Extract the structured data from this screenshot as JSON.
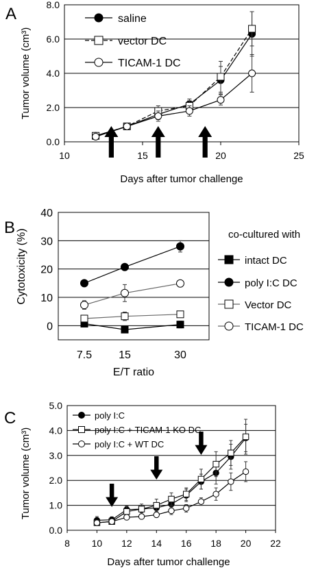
{
  "panels": [
    "A",
    "B",
    "C"
  ],
  "chart_data": [
    {
      "panel": "A",
      "type": "line",
      "title": "",
      "xlabel": "Days after tumor challenge",
      "ylabel": "Tumor volume (cm³)",
      "xlim": [
        10,
        25
      ],
      "ylim": [
        0,
        8
      ],
      "xticks": [
        10,
        15,
        20,
        25
      ],
      "yticks": [
        0,
        2,
        4,
        6,
        8
      ],
      "xtick_labels": [
        "10",
        "15",
        "20",
        "25"
      ],
      "ytick_labels": [
        "0.0",
        "2.0",
        "4.0",
        "6.0",
        "8.0"
      ],
      "grid": "horizontal",
      "legend_position": "top-left",
      "x": [
        12,
        14,
        16,
        18,
        20,
        22
      ],
      "series": [
        {
          "name": "saline",
          "marker": "filled-circle",
          "dash": "solid",
          "values": [
            0.35,
            0.9,
            1.6,
            2.2,
            3.6,
            6.3
          ],
          "errors": [
            0.1,
            0.1,
            0.3,
            0.3,
            0.8,
            1.3
          ]
        },
        {
          "name": "vector DC",
          "marker": "open-square",
          "dash": "dashed",
          "values": [
            0.35,
            0.9,
            1.8,
            2.1,
            3.8,
            6.6
          ],
          "errors": [
            0.1,
            0.1,
            0.3,
            0.3,
            0.9,
            1.0
          ]
        },
        {
          "name": "TICAM-1 DC",
          "marker": "open-circle",
          "dash": "solid",
          "values": [
            0.3,
            0.9,
            1.5,
            1.8,
            2.45,
            4.0
          ],
          "errors": [
            0.1,
            0.1,
            0.3,
            0.3,
            0.3,
            1.1
          ]
        }
      ],
      "arrows_at_x": [
        13,
        16,
        19
      ]
    },
    {
      "panel": "B",
      "type": "line",
      "title": "",
      "xlabel": "E/T ratio",
      "ylabel": "Cytotoxicity (%)",
      "ylim": [
        -5,
        40
      ],
      "yticks": [
        0,
        10,
        20,
        30,
        40
      ],
      "ytick_labels": [
        "0",
        "10",
        "20",
        "30",
        "40"
      ],
      "categories": [
        "7.5",
        "15",
        "30"
      ],
      "grid": "horizontal",
      "legend_title": "co-cultured with",
      "legend_position": "right",
      "series": [
        {
          "name": "intact DC",
          "marker": "filled-square",
          "values": [
            0.7,
            -1.4,
            0.4
          ],
          "errors": [
            0.5,
            0.6,
            1.2
          ]
        },
        {
          "name": "poly I:C DC",
          "marker": "filled-circle",
          "values": [
            15.0,
            20.7,
            28.0
          ],
          "errors": [
            0.4,
            0.4,
            2.0
          ]
        },
        {
          "name": "Vector DC",
          "marker": "open-square",
          "values": [
            2.5,
            3.3,
            4.0
          ],
          "errors": [
            0.5,
            1.5,
            1.0
          ]
        },
        {
          "name": "TICAM-1 DC",
          "marker": "open-circle",
          "values": [
            7.3,
            11.5,
            14.9
          ],
          "errors": [
            1.5,
            3.0,
            0.5
          ]
        }
      ]
    },
    {
      "panel": "C",
      "type": "line",
      "title": "",
      "xlabel": "Days after tumor challenge",
      "ylabel": "Tumor volume (cm³)",
      "xlim": [
        8,
        22
      ],
      "ylim": [
        0,
        5
      ],
      "xticks": [
        8,
        10,
        12,
        14,
        16,
        18,
        20,
        22
      ],
      "yticks": [
        0,
        1,
        2,
        3,
        4,
        5
      ],
      "xtick_labels": [
        "8",
        "10",
        "12",
        "14",
        "16",
        "18",
        "20",
        "22"
      ],
      "ytick_labels": [
        "0.0",
        "1.0",
        "2.0",
        "3.0",
        "4.0",
        "5.0"
      ],
      "grid": "horizontal",
      "legend_position": "top-left",
      "x": [
        10,
        11,
        12,
        13,
        14,
        15,
        16,
        17,
        18,
        19,
        20
      ],
      "series": [
        {
          "name": "poly I:C",
          "marker": "filled-circle",
          "values": [
            0.4,
            0.42,
            0.83,
            0.85,
            0.9,
            1.05,
            1.4,
            1.95,
            2.3,
            2.95,
            3.7
          ],
          "errors": [
            0.15,
            0.12,
            0.15,
            0.15,
            0.2,
            0.2,
            0.25,
            0.3,
            0.45,
            0.5,
            0.55
          ]
        },
        {
          "name": "poly I:C + TICAM-1 KO  DC",
          "marker": "open-square",
          "values": [
            0.3,
            0.35,
            0.75,
            0.85,
            1.0,
            1.25,
            1.45,
            2.05,
            2.65,
            3.1,
            3.75
          ],
          "errors": [
            0.1,
            0.1,
            0.2,
            0.2,
            0.25,
            0.25,
            0.25,
            0.4,
            0.5,
            0.5,
            0.7
          ]
        },
        {
          "name": "poly I:C + WT DC",
          "marker": "open-circle",
          "values": [
            0.3,
            0.35,
            0.52,
            0.55,
            0.62,
            0.78,
            0.88,
            1.15,
            1.45,
            1.95,
            2.35
          ],
          "errors": [
            0.1,
            0.1,
            0.1,
            0.1,
            0.1,
            0.15,
            0.15,
            0.15,
            0.25,
            0.35,
            0.4
          ]
        }
      ],
      "arrows_at_x": [
        11,
        14,
        17
      ]
    }
  ]
}
